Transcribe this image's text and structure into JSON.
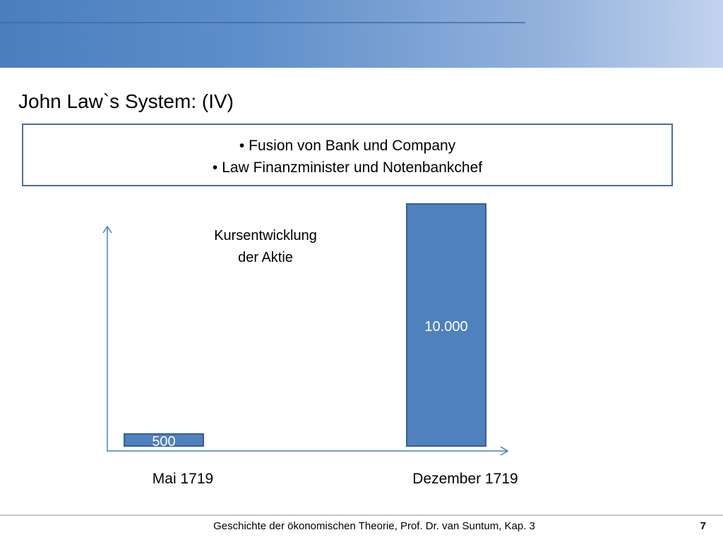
{
  "slide": {
    "title": "John Law`s System: (IV)",
    "bullets": [
      "Fusion von Bank und Company",
      "Law Finanzminister und Notenbankchef"
    ],
    "footer": "Geschichte der ökonomischen Theorie, Prof. Dr. van Suntum, Kap. 3",
    "page_number": "7"
  },
  "colors": {
    "bar_fill": "#4f81bd",
    "bar_stroke": "#3a5f8f",
    "axis": "#4a7ebf",
    "box_border": "#4a6f9d"
  },
  "chart_data": {
    "type": "bar",
    "title": "Kursentwicklung der Aktie",
    "title_lines": [
      "Kursentwicklung",
      "der Aktie"
    ],
    "categories": [
      "Mai 1719",
      "Dezember 1719"
    ],
    "values": [
      500,
      10000
    ],
    "value_labels": [
      "500",
      "10.000"
    ],
    "xlabel": "",
    "ylabel": "",
    "ylim": [
      0,
      10000
    ],
    "grid": false,
    "legend": "none"
  }
}
